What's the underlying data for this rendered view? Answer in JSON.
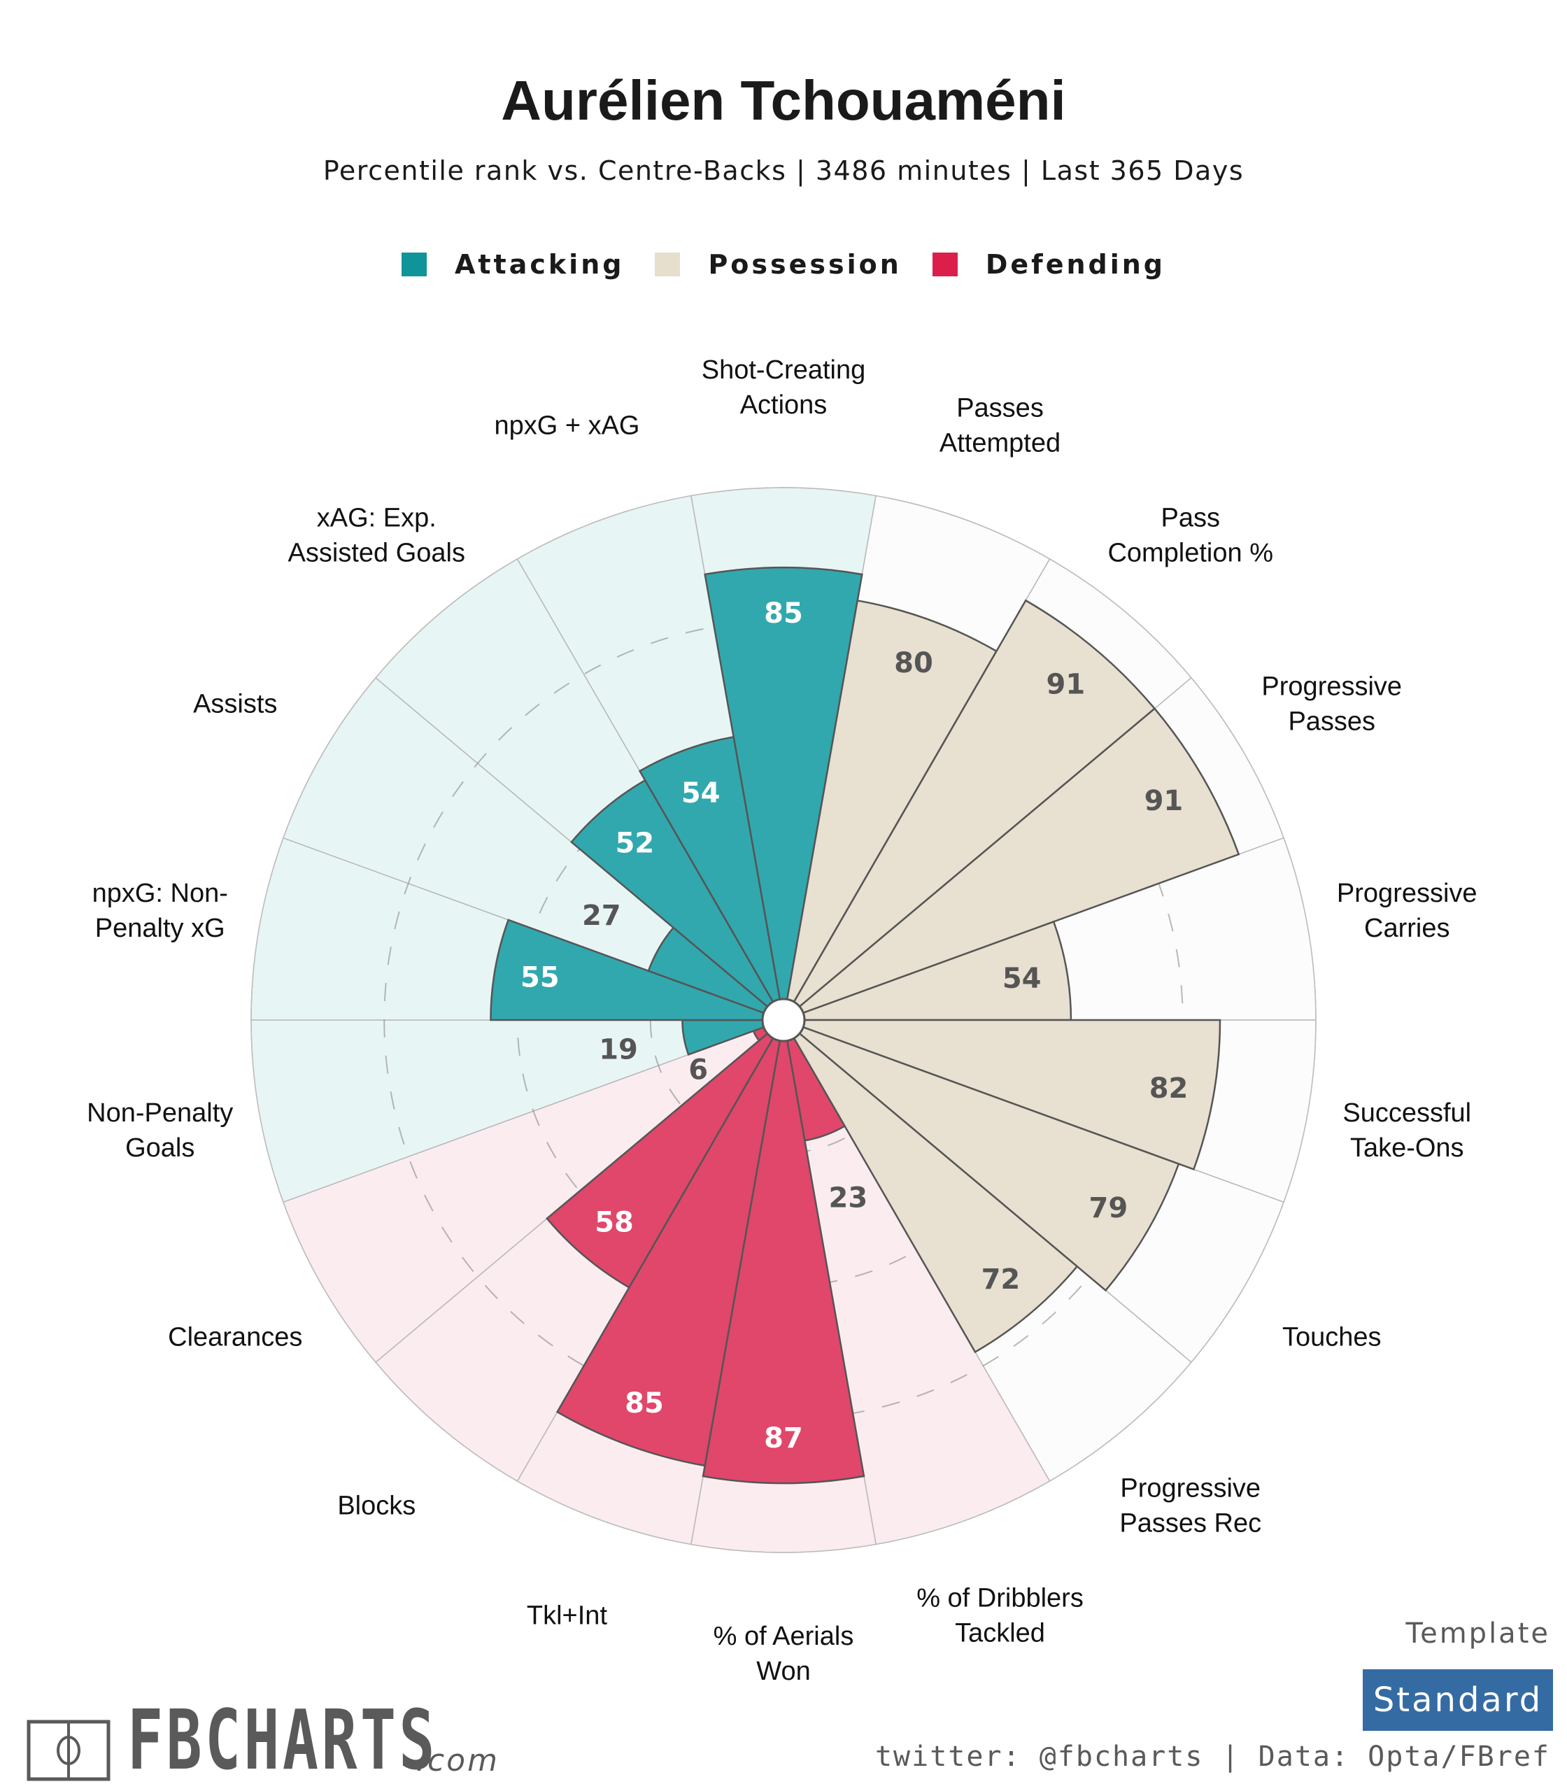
{
  "header": {
    "title": "Aurélien Tchouaméni",
    "subtitle": "Percentile rank vs. Centre-Backs | 3486 minutes | Last 365 Days"
  },
  "legend": [
    {
      "label": "Attacking",
      "color": "#0f9599"
    },
    {
      "label": "Possession",
      "color": "#e6dfce"
    },
    {
      "label": "Defending",
      "color": "#dc1f4a"
    }
  ],
  "chart_data": {
    "type": "polar-bar",
    "title": "Aurélien Tchouaméni",
    "subtitle": "Percentile rank vs. Centre-Backs | 3486 minutes | Last 365 Days",
    "value_range": [
      0,
      100
    ],
    "gridlines": [
      25,
      50,
      75
    ],
    "legend_position": "top-center",
    "start": "top",
    "direction": "clockwise",
    "groups": {
      "Attacking": {
        "bar": "#31a8ae",
        "background": "#e8f5f5",
        "label_color": "#ffffff"
      },
      "Possession": {
        "bar": "#e8e0d0",
        "background": "#fcfcfc",
        "label_color": "#555555"
      },
      "Defending": {
        "bar": "#e0476a",
        "background": "#fbecf0",
        "label_color": "#ffffff"
      }
    },
    "metrics": [
      {
        "label": "Shot-Creating\nActions",
        "group": "Attacking",
        "value": 85
      },
      {
        "label": "Passes\nAttempted",
        "group": "Possession",
        "value": 80
      },
      {
        "label": "Pass\nCompletion %",
        "group": "Possession",
        "value": 91
      },
      {
        "label": "Progressive\nPasses",
        "group": "Possession",
        "value": 91
      },
      {
        "label": "Progressive\nCarries",
        "group": "Possession",
        "value": 54
      },
      {
        "label": "Successful\nTake-Ons",
        "group": "Possession",
        "value": 82
      },
      {
        "label": "Touches",
        "group": "Possession",
        "value": 79
      },
      {
        "label": "Progressive\nPasses Rec",
        "group": "Possession",
        "value": 72
      },
      {
        "label": "% of Dribblers\nTackled",
        "group": "Defending",
        "value": 23
      },
      {
        "label": "% of Aerials\nWon",
        "group": "Defending",
        "value": 87
      },
      {
        "label": "Tkl+Int",
        "group": "Defending",
        "value": 85
      },
      {
        "label": "Blocks",
        "group": "Defending",
        "value": 58
      },
      {
        "label": "Clearances",
        "group": "Defending",
        "value": 6
      },
      {
        "label": "Non-Penalty\nGoals",
        "group": "Attacking",
        "value": 19
      },
      {
        "label": "npxG: Non-\nPenalty xG",
        "group": "Attacking",
        "value": 55
      },
      {
        "label": "Assists",
        "group": "Attacking",
        "value": 27
      },
      {
        "label": "xAG: Exp.\nAssisted Goals",
        "group": "Attacking",
        "value": 52
      },
      {
        "label": "npxG + xAG",
        "group": "Attacking",
        "value": 54
      }
    ]
  },
  "footer": {
    "logo_text": "FBCHARTS",
    "logo_suffix": ".com",
    "template_label": "Template",
    "template_value": "Standard",
    "credits": "twitter: @fbcharts | Data: Opta/FBref"
  }
}
